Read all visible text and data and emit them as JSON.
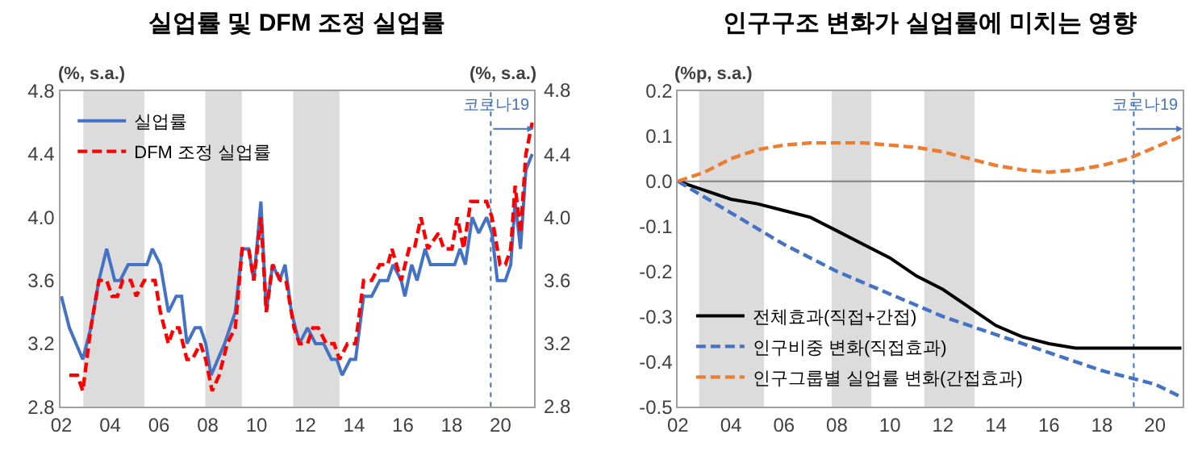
{
  "chart_data": [
    {
      "type": "line",
      "title": "실업률 및 DFM 조정 실업률",
      "ylabel": "(%, s.a.)",
      "y2label": "(%, s.a.)",
      "xlim": [
        2001.95,
        2021.36
      ],
      "xticks": [
        {
          "value": 2002,
          "label": "02"
        },
        {
          "value": 2004,
          "label": "04"
        },
        {
          "value": 2006,
          "label": "06"
        },
        {
          "value": 2008,
          "label": "08"
        },
        {
          "value": 2010,
          "label": "10"
        },
        {
          "value": 2012,
          "label": "12"
        },
        {
          "value": 2014,
          "label": "14"
        },
        {
          "value": 2016,
          "label": "16"
        },
        {
          "value": 2018,
          "label": "18"
        },
        {
          "value": 2020,
          "label": "20"
        }
      ],
      "ylim": [
        2.8,
        4.8
      ],
      "yticks": [
        {
          "value": 2.8,
          "label": "2.8"
        },
        {
          "value": 3.2,
          "label": "3.2"
        },
        {
          "value": 3.6,
          "label": "3.6"
        },
        {
          "value": 4.0,
          "label": "4.0"
        },
        {
          "value": 4.4,
          "label": "4.4"
        },
        {
          "value": 4.8,
          "label": "4.8"
        }
      ],
      "y2lim": [
        2.8,
        4.8
      ],
      "y2ticks": [
        {
          "value": 2.8,
          "label": "2.8"
        },
        {
          "value": 3.2,
          "label": "3.2"
        },
        {
          "value": 3.6,
          "label": "3.6"
        },
        {
          "value": 4.0,
          "label": "4.0"
        },
        {
          "value": 4.4,
          "label": "4.4"
        },
        {
          "value": 4.8,
          "label": "4.8"
        }
      ],
      "legend": "top left",
      "grid": false,
      "bands": [
        {
          "axis": "x",
          "from": 2002.9,
          "to": 2005.4,
          "color": "#dcdcdc"
        },
        {
          "axis": "x",
          "from": 2007.9,
          "to": 2009.4,
          "color": "#dcdcdc"
        },
        {
          "axis": "x",
          "from": 2011.5,
          "to": 2013.4,
          "color": "#dcdcdc"
        }
      ],
      "ref_lines": [
        {
          "axis": "x",
          "value": 2019.6,
          "label": "코로나19",
          "color": "#4472c4",
          "line_style": "dotted"
        }
      ],
      "series": [
        {
          "name": "실업률",
          "color": "#4472c4",
          "line_style": "solid",
          "x": [
            2002.0,
            2002.33,
            2002.88,
            2003.21,
            2003.54,
            2003.86,
            2004.19,
            2004.41,
            2004.74,
            2005.51,
            2005.73,
            2006.06,
            2006.39,
            2006.71,
            2006.93,
            2007.15,
            2007.48,
            2007.7,
            2007.92,
            2008.14,
            2008.69,
            2009.13,
            2009.41,
            2009.68,
            2009.89,
            2010.18,
            2010.4,
            2010.66,
            2010.95,
            2011.17,
            2011.43,
            2011.76,
            2012.09,
            2012.42,
            2012.75,
            2013.07,
            2013.29,
            2013.51,
            2013.84,
            2014.06,
            2014.39,
            2014.72,
            2015.05,
            2015.38,
            2015.6,
            2015.93,
            2016.08,
            2016.36,
            2016.58,
            2016.91,
            2017.13,
            2018.12,
            2018.34,
            2018.56,
            2018.84,
            2019.11,
            2019.43,
            2019.65,
            2019.87,
            2020.2,
            2020.42,
            2020.6,
            2020.82,
            2021.04,
            2021.3
          ],
          "values": [
            3.5,
            3.3,
            3.1,
            3.3,
            3.6,
            3.8,
            3.6,
            3.6,
            3.7,
            3.7,
            3.8,
            3.7,
            3.4,
            3.5,
            3.5,
            3.2,
            3.3,
            3.3,
            3.2,
            3.0,
            3.2,
            3.4,
            3.8,
            3.8,
            3.6,
            4.1,
            3.4,
            3.7,
            3.6,
            3.7,
            3.4,
            3.2,
            3.3,
            3.2,
            3.2,
            3.1,
            3.1,
            3.0,
            3.1,
            3.1,
            3.5,
            3.5,
            3.6,
            3.6,
            3.7,
            3.6,
            3.5,
            3.7,
            3.6,
            3.8,
            3.7,
            3.7,
            3.8,
            3.7,
            4.0,
            3.9,
            4.0,
            3.9,
            3.6,
            3.6,
            3.7,
            4.1,
            3.8,
            4.3,
            4.4
          ]
        },
        {
          "name": "DFM 조정 실업률",
          "color": "#ff0000",
          "line_style": "dashed",
          "x": [
            2002.33,
            2002.66,
            2002.88,
            2003.21,
            2003.54,
            2003.86,
            2004.08,
            2004.3,
            2004.52,
            2004.85,
            2005.07,
            2005.4,
            2005.84,
            2006.06,
            2006.39,
            2006.61,
            2006.82,
            2007.15,
            2007.37,
            2007.7,
            2007.92,
            2008.18,
            2008.47,
            2008.8,
            2009.13,
            2009.41,
            2009.68,
            2009.89,
            2010.18,
            2010.4,
            2010.66,
            2010.99,
            2011.21,
            2011.54,
            2011.76,
            2012.09,
            2012.31,
            2012.53,
            2012.86,
            2013.18,
            2013.4,
            2013.73,
            2014.06,
            2014.39,
            2014.72,
            2015.05,
            2015.38,
            2015.55,
            2015.93,
            2016.25,
            2016.47,
            2016.74,
            2017.02,
            2017.46,
            2017.68,
            2018.01,
            2018.23,
            2018.49,
            2018.78,
            2019.43,
            2019.65,
            2019.98,
            2020.2,
            2020.42,
            2020.6,
            2020.82,
            2021.04,
            2021.3
          ],
          "values": [
            3.0,
            3.0,
            2.9,
            3.3,
            3.6,
            3.6,
            3.5,
            3.5,
            3.6,
            3.6,
            3.5,
            3.6,
            3.6,
            3.4,
            3.2,
            3.3,
            3.3,
            3.1,
            3.1,
            3.2,
            3.1,
            2.9,
            3.0,
            3.2,
            3.3,
            3.8,
            3.8,
            3.6,
            4.0,
            3.4,
            3.7,
            3.6,
            3.6,
            3.3,
            3.2,
            3.2,
            3.3,
            3.3,
            3.2,
            3.2,
            3.1,
            3.2,
            3.2,
            3.6,
            3.6,
            3.7,
            3.7,
            3.8,
            3.6,
            3.8,
            3.8,
            4.0,
            3.8,
            3.9,
            3.8,
            3.8,
            4.0,
            3.8,
            4.1,
            4.1,
            4.0,
            3.7,
            3.7,
            3.8,
            4.2,
            3.9,
            4.4,
            4.6
          ]
        }
      ]
    },
    {
      "type": "line",
      "title": "인구구조 변화가 실업률에 미치는 영향",
      "ylabel": "(%p, s.a.)",
      "xlim": [
        2002,
        2021.05
      ],
      "xticks": [
        {
          "value": 2002,
          "label": "02"
        },
        {
          "value": 2004,
          "label": "04"
        },
        {
          "value": 2006,
          "label": "06"
        },
        {
          "value": 2008,
          "label": "08"
        },
        {
          "value": 2010,
          "label": "10"
        },
        {
          "value": 2012,
          "label": "12"
        },
        {
          "value": 2014,
          "label": "14"
        },
        {
          "value": 2016,
          "label": "16"
        },
        {
          "value": 2018,
          "label": "18"
        },
        {
          "value": 2020,
          "label": "20"
        }
      ],
      "ylim": [
        -0.5,
        0.2
      ],
      "yticks": [
        {
          "value": -0.5,
          "label": "-0.5"
        },
        {
          "value": -0.4,
          "label": "-0.4"
        },
        {
          "value": -0.3,
          "label": "-0.3"
        },
        {
          "value": -0.2,
          "label": "-0.2"
        },
        {
          "value": -0.1,
          "label": "-0.1"
        },
        {
          "value": 0,
          "label": "0.0"
        },
        {
          "value": 0.1,
          "label": "0.1"
        },
        {
          "value": 0.2,
          "label": "0.2"
        }
      ],
      "legend": "bottom left",
      "grid": false,
      "bands": [
        {
          "axis": "x",
          "from": 2002.8,
          "to": 2005.25,
          "color": "#dcdcdc"
        },
        {
          "axis": "x",
          "from": 2007.8,
          "to": 2009.3,
          "color": "#dcdcdc"
        },
        {
          "axis": "x",
          "from": 2011.3,
          "to": 2013.2,
          "color": "#dcdcdc"
        }
      ],
      "ref_lines": [
        {
          "axis": "y",
          "value": 0,
          "color": "#808080",
          "line_style": "solid"
        },
        {
          "axis": "x",
          "value": 2019.2,
          "label": "코로나19",
          "color": "#4472c4",
          "line_style": "dotted"
        }
      ],
      "series": [
        {
          "name": "전체효과(직접+간접)",
          "color": "#000000",
          "line_style": "solid",
          "x": [
            2002,
            2003,
            2004,
            2005,
            2006,
            2007,
            2008,
            2009,
            2010,
            2011,
            2012,
            2013,
            2014,
            2015,
            2016,
            2017,
            2018,
            2019,
            2020,
            2021
          ],
          "values": [
            0,
            -0.02,
            -0.04,
            -0.05,
            -0.065,
            -0.08,
            -0.11,
            -0.14,
            -0.17,
            -0.21,
            -0.24,
            -0.28,
            -0.32,
            -0.345,
            -0.36,
            -0.37,
            -0.37,
            -0.37,
            -0.37,
            -0.37
          ]
        },
        {
          "name": "인구비중 변화(직접효과)",
          "color": "#4472c4",
          "line_style": "dashed",
          "x": [
            2002,
            2004,
            2006,
            2008,
            2010,
            2012,
            2014,
            2016,
            2018,
            2020,
            2021.05
          ],
          "values": [
            0,
            -0.07,
            -0.14,
            -0.2,
            -0.25,
            -0.3,
            -0.34,
            -0.38,
            -0.42,
            -0.45,
            -0.48
          ]
        },
        {
          "name": "인구그룹별 실업률 변화(간접효과)",
          "color": "#ed7d31",
          "line_style": "dashed",
          "x": [
            2002,
            2003,
            2004,
            2005,
            2006,
            2007,
            2008,
            2009,
            2010,
            2011,
            2012,
            2013,
            2014,
            2015,
            2016,
            2017,
            2018,
            2019,
            2020,
            2021
          ],
          "values": [
            0,
            0.02,
            0.05,
            0.07,
            0.08,
            0.085,
            0.085,
            0.085,
            0.08,
            0.075,
            0.065,
            0.05,
            0.035,
            0.025,
            0.02,
            0.025,
            0.035,
            0.05,
            0.075,
            0.1
          ]
        }
      ]
    }
  ]
}
